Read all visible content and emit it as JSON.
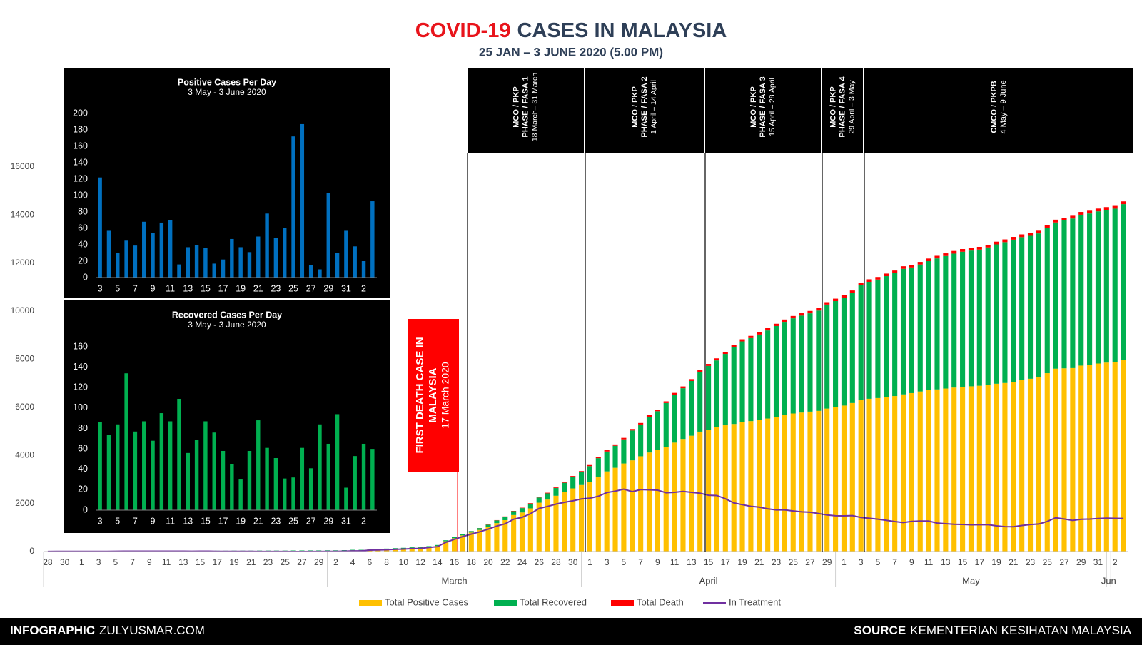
{
  "chart_data": [
    {
      "type": "bar",
      "stacked": true,
      "title_parts": [
        "COVID-19",
        "CASES IN MALAYSIA"
      ],
      "title_colors": [
        "#e8141b",
        "#2e3f57"
      ],
      "subtitle": "25 JAN – 3 JUNE 2020 (5.00 PM)",
      "categories": [
        "28",
        null,
        "30",
        null,
        "1",
        null,
        "3",
        null,
        "5",
        null,
        "7",
        null,
        "9",
        null,
        "11",
        null,
        "13",
        null,
        "15",
        null,
        "17",
        null,
        "19",
        null,
        "21",
        null,
        "23",
        null,
        "25",
        null,
        "27",
        null,
        "29",
        null,
        "2",
        null,
        "4",
        null,
        "6",
        null,
        "8",
        null,
        "10",
        null,
        "12",
        null,
        "14",
        null,
        "16",
        null,
        "18",
        null,
        "20",
        null,
        "22",
        null,
        "24",
        null,
        "26",
        null,
        "28",
        null,
        "30",
        null,
        "1",
        null,
        "3",
        null,
        "5",
        null,
        "7",
        null,
        "9",
        null,
        "11",
        null,
        "13",
        null,
        "15",
        null,
        "17",
        null,
        "19",
        null,
        "21",
        null,
        "23",
        null,
        "25",
        null,
        "27",
        null,
        "29",
        null,
        "1",
        null,
        "3",
        null,
        "5",
        null,
        "7",
        null,
        "9",
        null,
        "11",
        null,
        "13",
        null,
        "15",
        null,
        "17",
        null,
        "19",
        null,
        "21",
        null,
        "23",
        null,
        "25",
        null,
        "27",
        null,
        "29",
        null,
        "31",
        null,
        "2",
        null
      ],
      "month_labels": [
        null,
        null,
        "March",
        "April",
        "May",
        "Jun"
      ],
      "ylim": [
        0,
        20000
      ],
      "yticks": [
        0,
        2000,
        4000,
        6000,
        8000,
        10000,
        12000,
        14000,
        16000
      ],
      "grid": false,
      "series": [
        {
          "name": "Total Positive Cases",
          "color": "#ffc000",
          "values": [
            4,
            7,
            8,
            8,
            8,
            8,
            8,
            10,
            12,
            14,
            16,
            16,
            18,
            18,
            18,
            18,
            18,
            19,
            22,
            22,
            22,
            22,
            22,
            22,
            22,
            22,
            22,
            22,
            22,
            22,
            23,
            25,
            25,
            29,
            29,
            36,
            50,
            50,
            83,
            93,
            99,
            117,
            129,
            149,
            158,
            197,
            238,
            428,
            553,
            673,
            790,
            900,
            1030,
            1183,
            1306,
            1518,
            1624,
            1796,
            2031,
            2161,
            2320,
            2470,
            2626,
            2766,
            2908,
            3116,
            3333,
            3483,
            3662,
            3793,
            3963,
            4119,
            4228,
            4346,
            4530,
            4683,
            4817,
            4987,
            5072,
            5182,
            5251,
            5305,
            5389,
            5425,
            5482,
            5532,
            5603,
            5691,
            5742,
            5780,
            5820,
            5851,
            5945,
            6002,
            6071,
            6176,
            6298,
            6353,
            6383,
            6428,
            6467,
            6535,
            6589,
            6656,
            6726,
            6742,
            6779,
            6819,
            6855,
            6872,
            6894,
            6941,
            6978,
            7009,
            7059,
            7137,
            7185,
            7245,
            7417,
            7604,
            7619,
            7629,
            7732,
            7762,
            7819,
            7857,
            7877,
            7970
          ]
        },
        {
          "name": "Total Recovered",
          "color": "#00b050",
          "values": [
            0,
            0,
            0,
            0,
            0,
            0,
            0,
            0,
            0,
            0,
            1,
            1,
            3,
            3,
            3,
            3,
            3,
            7,
            7,
            7,
            12,
            12,
            15,
            15,
            15,
            18,
            18,
            18,
            18,
            22,
            22,
            22,
            22,
            22,
            22,
            22,
            22,
            22,
            24,
            24,
            24,
            24,
            26,
            26,
            27,
            27,
            35,
            42,
            42,
            49,
            60,
            75,
            87,
            114,
            139,
            159,
            183,
            199,
            215,
            259,
            320,
            388,
            479,
            537,
            645,
            767,
            827,
            915,
            1005,
            1241,
            1321,
            1487,
            1608,
            1830,
            1995,
            2108,
            2276,
            2478,
            2647,
            2766,
            2967,
            3197,
            3349,
            3452,
            3542,
            3663,
            3775,
            3862,
            3957,
            4032,
            4087,
            4171,
            4326,
            4413,
            4484,
            4578,
            4776,
            4864,
            4929,
            5025,
            5113,
            5223,
            5226,
            5281,
            5351,
            5449,
            5512,
            5571,
            5614,
            5646,
            5665,
            5706,
            5796,
            5859,
            5912,
            5939,
            5945,
            5985,
            6050,
            6083,
            6152,
            6221,
            6276,
            6298,
            6330,
            6353,
            6383,
            6478
          ]
        },
        {
          "name": "Total Death",
          "color": "#ff0000",
          "values": [
            0,
            0,
            0,
            0,
            0,
            0,
            0,
            0,
            0,
            0,
            0,
            0,
            0,
            0,
            0,
            0,
            0,
            0,
            0,
            0,
            0,
            0,
            0,
            0,
            0,
            0,
            0,
            0,
            0,
            0,
            0,
            0,
            0,
            0,
            0,
            0,
            0,
            0,
            0,
            0,
            0,
            0,
            0,
            0,
            0,
            0,
            0,
            0,
            0,
            2,
            2,
            3,
            10,
            10,
            14,
            14,
            16,
            21,
            23,
            26,
            27,
            34,
            37,
            43,
            45,
            50,
            53,
            57,
            61,
            62,
            63,
            65,
            67,
            70,
            73,
            76,
            77,
            82,
            84,
            86,
            88,
            88,
            89,
            92,
            93,
            93,
            95,
            96,
            98,
            98,
            99,
            99,
            100,
            102,
            103,
            103,
            105,
            105,
            106,
            107,
            107,
            107,
            108,
            108,
            109,
            109,
            111,
            112,
            112,
            112,
            112,
            113,
            113,
            113,
            114,
            114,
            114,
            114,
            115,
            115,
            115,
            115,
            115,
            115,
            115,
            115,
            115,
            115
          ]
        },
        {
          "name": "In Treatment",
          "color": "#7030a0",
          "type": "line",
          "values": [
            4,
            7,
            8,
            8,
            8,
            8,
            8,
            10,
            12,
            14,
            15,
            15,
            15,
            15,
            15,
            15,
            15,
            12,
            15,
            15,
            10,
            10,
            7,
            7,
            7,
            4,
            4,
            4,
            4,
            0,
            1,
            3,
            3,
            7,
            7,
            14,
            28,
            28,
            59,
            69,
            75,
            93,
            103,
            123,
            131,
            170,
            203,
            386,
            511,
            622,
            728,
            822,
            933,
            1059,
            1153,
            1345,
            1425,
            1576,
            1793,
            1876,
            1973,
            2048,
            2110,
            2186,
            2218,
            2299,
            2453,
            2511,
            2596,
            2490,
            2579,
            2567,
            2553,
            2446,
            2462,
            2499,
            2464,
            2427,
            2341,
            2330,
            2196,
            2020,
            1951,
            1881,
            1847,
            1776,
            1733,
            1733,
            1687,
            1650,
            1634,
            1581,
            1519,
            1487,
            1484,
            1495,
            1417,
            1384,
            1348,
            1296,
            1247,
            1205,
            1255,
            1267,
            1266,
            1184,
            1156,
            1136,
            1129,
            1114,
            1117,
            1122,
            1069,
            1037,
            1033,
            1084,
            1126,
            1146,
            1252,
            1406,
            1352,
            1293,
            1341,
            1349,
            1374,
            1389,
            1379,
            1377
          ]
        }
      ]
    },
    {
      "type": "bar",
      "title": "Positive Cases Per Day",
      "subtitle": "3 May - 3 June 2020",
      "color": "#0070c0",
      "categories": [
        "3",
        null,
        "5",
        null,
        "7",
        null,
        "9",
        null,
        "11",
        null,
        "13",
        null,
        "15",
        null,
        "17",
        null,
        "19",
        null,
        "21",
        null,
        "23",
        null,
        "25",
        null,
        "27",
        null,
        "29",
        null,
        "31",
        null,
        "2",
        null
      ],
      "values": [
        122,
        57,
        30,
        45,
        39,
        68,
        54,
        67,
        70,
        16,
        37,
        40,
        36,
        17,
        22,
        47,
        37,
        31,
        50,
        78,
        48,
        60,
        172,
        187,
        15,
        10,
        103,
        30,
        57,
        38,
        20,
        93
      ],
      "ylim": [
        0,
        200
      ],
      "yticks": [
        0,
        20,
        40,
        60,
        80,
        100,
        120,
        140,
        160,
        180,
        200
      ]
    },
    {
      "type": "bar",
      "title": "Recovered Cases Per Day",
      "subtitle": "3 May - 3 June 2020",
      "color": "#00b050",
      "categories": [
        "3",
        null,
        "5",
        null,
        "7",
        null,
        "9",
        null,
        "11",
        null,
        "13",
        null,
        "15",
        null,
        "17",
        null,
        "19",
        null,
        "21",
        null,
        "23",
        null,
        "25",
        null,
        "27",
        null,
        "29",
        null,
        "31",
        null,
        "2",
        null
      ],
      "values": [
        86,
        74,
        84,
        134,
        77,
        87,
        68,
        95,
        87,
        109,
        56,
        69,
        87,
        76,
        58,
        45,
        30,
        58,
        88,
        61,
        51,
        31,
        32,
        61,
        41,
        84,
        65,
        94,
        22,
        53,
        65,
        60
      ],
      "ylim": [
        0,
        160
      ],
      "yticks": [
        0,
        20,
        40,
        60,
        80,
        100,
        120,
        140,
        160
      ]
    }
  ],
  "phases": [
    {
      "lines": [
        "MCO / PKP",
        "PHASE / FASA 1",
        "18 March– 31 March"
      ]
    },
    {
      "lines": [
        "MCO / PKP",
        "PHASE / FASA 2",
        "1 April – 14 April"
      ]
    },
    {
      "lines": [
        "MCO / PKP",
        "PHASE / FASA 3",
        "15 April – 28 April"
      ]
    },
    {
      "lines": [
        "MCO / PKP",
        "PHASE / FASA 4",
        "29 April – 3 May"
      ]
    },
    {
      "lines": [
        "CMCO / PKPB",
        "4 May – 9 June"
      ]
    }
  ],
  "annotation": {
    "lines": [
      "FIRST DEATH CASE IN",
      "MALAYSIA",
      "17 March 2020"
    ]
  },
  "footer": {
    "left": [
      "INFOGRAPHIC",
      "ZULYUSMAR.COM"
    ],
    "right": [
      "SOURCE",
      "KEMENTERIAN KESIHATAN MALAYSIA"
    ]
  }
}
